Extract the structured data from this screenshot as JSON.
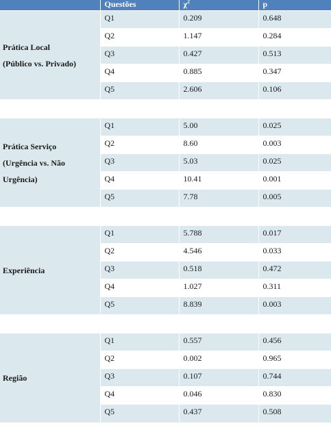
{
  "header": {
    "col1": "",
    "col2": "Questões",
    "col3_base": "χ",
    "col3_sup": "2",
    "col4": "p"
  },
  "groups": [
    {
      "label_lines": [
        "Prática Local",
        "(Público vs. Privado)"
      ],
      "rows": [
        {
          "q": "Q1",
          "chi2": "0.209",
          "p": "0.648"
        },
        {
          "q": "Q2",
          "chi2": "1.147",
          "p": "0.284"
        },
        {
          "q": "Q3",
          "chi2": "0.427",
          "p": "0.513"
        },
        {
          "q": "Q4",
          "chi2": "0.885",
          "p": "0.347"
        },
        {
          "q": "Q5",
          "chi2": "2.606",
          "p": "0.106"
        }
      ]
    },
    {
      "label_lines": [
        "Prática Serviço",
        "(Urgência vs. Não",
        "Urgência)"
      ],
      "rows": [
        {
          "q": "Q1",
          "chi2": "5.00",
          "p": "0.025"
        },
        {
          "q": "Q2",
          "chi2": "8.60",
          "p": "0.003"
        },
        {
          "q": "Q3",
          "chi2": "5.03",
          "p": "0.025"
        },
        {
          "q": "Q4",
          "chi2": "10.41",
          "p": "0.001"
        },
        {
          "q": "Q5",
          "chi2": "7.78",
          "p": "0.005"
        }
      ]
    },
    {
      "label_lines": [
        "Experiência"
      ],
      "rows": [
        {
          "q": "Q1",
          "chi2": "5.788",
          "p": "0.017"
        },
        {
          "q": "Q2",
          "chi2": "4.546",
          "p": "0.033"
        },
        {
          "q": "Q3",
          "chi2": "0.518",
          "p": "0.472"
        },
        {
          "q": "Q4",
          "chi2": "1.027",
          "p": "0.311"
        },
        {
          "q": "Q5",
          "chi2": "8.839",
          "p": "0.003"
        }
      ]
    },
    {
      "label_lines": [
        "Região"
      ],
      "rows": [
        {
          "q": "Q1",
          "chi2": "0.557",
          "p": "0.456"
        },
        {
          "q": "Q2",
          "chi2": "0.002",
          "p": "0.965"
        },
        {
          "q": "Q3",
          "chi2": "0.107",
          "p": "0.744"
        },
        {
          "q": "Q4",
          "chi2": "0.046",
          "p": "0.830"
        },
        {
          "q": "Q5",
          "chi2": "0.437",
          "p": "0.508"
        }
      ]
    }
  ],
  "colors": {
    "header_bg": "#4f81bd",
    "band_bg": "#dbe9ef",
    "alt_bg": "#ffffff"
  }
}
